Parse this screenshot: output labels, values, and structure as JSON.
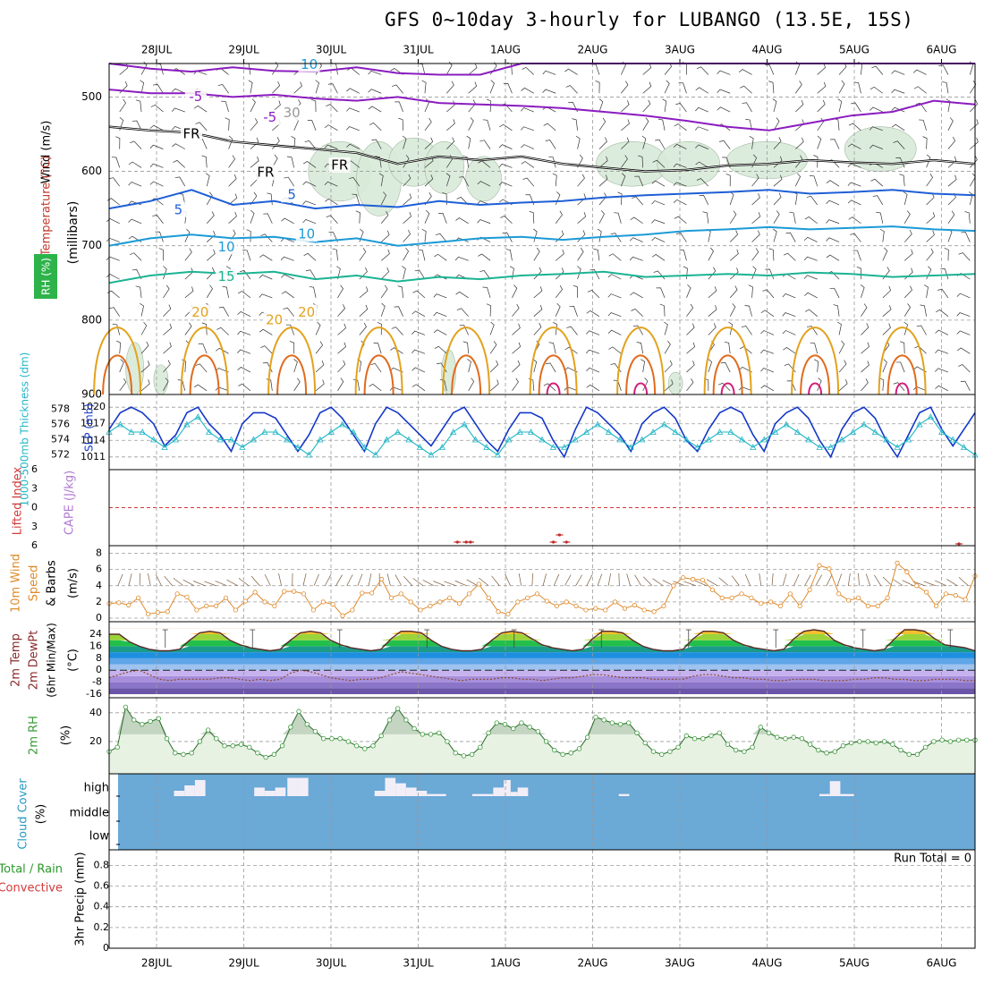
{
  "title": "GFS 0~10day 3-hourly for LUBANGO (13.5E, 15S)",
  "dates": [
    "28JUL",
    "29JUL",
    "30JUL",
    "31JUL",
    "1AUG",
    "2AUG",
    "3AUG",
    "4AUG",
    "5AUG",
    "6AUG"
  ],
  "colors": {
    "temp_m5": "#8a1cc0",
    "temp_5": "#1e5fd6",
    "temp_10": "#1b9ad6",
    "temp_15": "#1bb393",
    "temp_20": "#e3a21c",
    "temp_25": "#e06b1c",
    "temp_30": "#d61c7a",
    "freeze": "#000000",
    "rh_fill": "#d9ead9",
    "thick": "#22b6c6",
    "slp": "#1538c8",
    "wind": "#e08a2a",
    "barb": "#7a5a3a",
    "rh2m": "#3a9a3a",
    "cloud_bg": "#6ba9d6",
    "grid": "#9a9a9a"
  },
  "chart_data": [
    {
      "type": "contour",
      "panel": "upper_air",
      "ylabel_parts": [
        "Wind (m/s)",
        "Temperature (°C)",
        "RH (%)"
      ],
      "yunit": "(millibars)",
      "yticks": [
        500,
        600,
        700,
        800,
        900
      ],
      "ylim": [
        455,
        900
      ],
      "contour_labels": [
        {
          "text": "-5",
          "t": 0.45,
          "p": 500
        },
        {
          "text": "-5",
          "t": 1.3,
          "p": 528
        },
        {
          "text": "FR",
          "t": 0.4,
          "p": 550
        },
        {
          "text": "FR",
          "t": 1.25,
          "p": 602
        },
        {
          "text": "FR",
          "t": 2.1,
          "p": 592
        },
        {
          "text": "5",
          "t": 0.25,
          "p": 652
        },
        {
          "text": "5",
          "t": 1.55,
          "p": 632
        },
        {
          "text": "10",
          "t": 0.8,
          "p": 702
        },
        {
          "text": "10",
          "t": 1.72,
          "p": 685
        },
        {
          "text": "15",
          "t": 0.8,
          "p": 742
        },
        {
          "text": "20",
          "t": 0.5,
          "p": 790
        },
        {
          "text": "20",
          "t": 1.35,
          "p": 800
        },
        {
          "text": "20",
          "t": 1.72,
          "p": 790
        },
        {
          "text": "10",
          "t": 1.75,
          "p": 457
        },
        {
          "text": "30",
          "t": 1.55,
          "p": 522
        }
      ],
      "isotherms": [
        {
          "name": "-5",
          "levels": [
            455,
            462,
            466,
            460,
            465,
            466,
            460,
            468,
            470,
            470,
            455,
            455,
            455,
            455,
            455,
            455,
            455,
            455,
            455,
            455,
            455,
            455
          ]
        },
        {
          "name": "-5b",
          "levels": [
            490,
            495,
            495,
            500,
            497,
            502,
            505,
            500,
            508,
            510,
            512,
            515,
            520,
            525,
            532,
            540,
            545,
            535,
            525,
            520,
            505,
            510
          ]
        },
        {
          "name": "FR",
          "levels": [
            540,
            545,
            548,
            560,
            565,
            570,
            575,
            590,
            580,
            585,
            580,
            590,
            595,
            600,
            598,
            592,
            590,
            585,
            588,
            590,
            585,
            590
          ]
        },
        {
          "name": "5",
          "levels": [
            650,
            640,
            625,
            645,
            640,
            650,
            645,
            648,
            640,
            645,
            642,
            640,
            635,
            632,
            630,
            628,
            625,
            630,
            628,
            625,
            630,
            632
          ]
        },
        {
          "name": "10",
          "levels": [
            700,
            690,
            685,
            690,
            688,
            695,
            690,
            700,
            695,
            690,
            688,
            692,
            688,
            685,
            680,
            678,
            675,
            678,
            676,
            674,
            678,
            680
          ]
        },
        {
          "name": "15",
          "levels": [
            750,
            740,
            735,
            738,
            735,
            745,
            740,
            748,
            742,
            745,
            740,
            738,
            735,
            742,
            740,
            738,
            740,
            736,
            738,
            742,
            740,
            738
          ]
        }
      ]
    },
    {
      "type": "line",
      "panel": "thickness_slp",
      "ylabel_left": "1000-500mb Thickness (dm)",
      "ylabel_right": "SLP (mb)",
      "yticks_left": [
        572,
        574,
        576,
        578
      ],
      "yticks_right": [
        1011,
        1014,
        1017,
        1020
      ],
      "series": [
        {
          "name": "SLP",
          "axis": "right",
          "values": [
            1016,
            1019,
            1020,
            1019,
            1017,
            1013,
            1015,
            1019,
            1020,
            1017,
            1015,
            1012,
            1017,
            1019,
            1019,
            1018,
            1015,
            1012,
            1015,
            1019,
            1020,
            1018,
            1015,
            1012,
            1017,
            1020,
            1019,
            1017,
            1015,
            1013,
            1016,
            1019,
            1020,
            1017,
            1014,
            1012,
            1016,
            1019,
            1019,
            1018,
            1014,
            1011,
            1016,
            1020,
            1019,
            1017,
            1015,
            1012,
            1017,
            1019,
            1020,
            1018,
            1014,
            1012,
            1016,
            1019,
            1020,
            1019,
            1015,
            1012,
            1017,
            1019,
            1020,
            1018,
            1014,
            1011,
            1016,
            1019,
            1020,
            1018,
            1014,
            1011,
            1015,
            1019,
            1020,
            1016,
            1013,
            1016,
            1019
          ]
        },
        {
          "name": "Thickness",
          "axis": "left",
          "values": [
            575,
            576,
            575,
            575,
            574,
            573,
            574,
            576,
            577,
            575,
            574,
            574,
            573,
            574,
            575,
            575,
            574,
            573,
            572,
            574,
            575,
            576,
            575,
            573,
            572,
            574,
            575,
            574,
            573,
            572,
            573,
            575,
            576,
            574,
            573,
            572,
            574,
            575,
            575,
            574,
            573,
            573,
            574,
            575,
            576,
            575,
            574,
            573,
            574,
            575,
            576,
            575,
            574,
            573,
            574,
            575,
            575,
            574,
            573,
            574,
            575,
            576,
            575,
            574,
            573,
            573,
            574,
            575,
            576,
            575,
            574,
            573,
            574,
            576,
            577,
            575,
            574,
            573,
            572
          ]
        }
      ]
    },
    {
      "type": "line",
      "panel": "stability",
      "ylabel_left": "Lifted Index",
      "ylabel_right": "CAPE (J/kg)",
      "yticks": [
        -6,
        -3,
        0,
        3,
        6
      ],
      "ylim": [
        -6,
        6
      ],
      "series": [
        {
          "name": "CAPE",
          "points": [
            {
              "t": 3.45,
              "v": 1
            },
            {
              "t": 3.55,
              "v": 1
            },
            {
              "t": 3.6,
              "v": 1
            },
            {
              "t": 4.55,
              "v": 1
            },
            {
              "t": 4.62,
              "v": 3
            },
            {
              "t": 4.7,
              "v": 1
            },
            {
              "t": 9.2,
              "v": 0.5
            }
          ]
        }
      ]
    },
    {
      "type": "line",
      "panel": "wind10m",
      "ylabel": "10m Wind Speed & Barbs (m/s)",
      "yticks": [
        0,
        2,
        4,
        6,
        8
      ],
      "ylim": [
        0,
        8.5
      ],
      "series": [
        {
          "name": "10m Wind Speed",
          "values": [
            1.8,
            1.9,
            1.6,
            2.5,
            0.5,
            0.7,
            0.8,
            3.0,
            2.6,
            1.0,
            1.5,
            1.5,
            2.5,
            1.0,
            2.1,
            3.2,
            2.0,
            1.5,
            3.3,
            3.3,
            3.0,
            1.0,
            2.0,
            1.7,
            0.3,
            1.0,
            3.1,
            3.1,
            4.8,
            2.5,
            3.0,
            2.0,
            1.0,
            1.5,
            2.0,
            2.5,
            1.8,
            3.0,
            4.2,
            2.5,
            0.8,
            0.5,
            2.0,
            2.5,
            3.0,
            2.1,
            1.5,
            2.0,
            1.5,
            1.0,
            1.2,
            1.0,
            2.0,
            1.2,
            1.6,
            1.0,
            0.8,
            1.5,
            4.0,
            5.0,
            4.8,
            4.7,
            3.5,
            2.5,
            2.5,
            3.0,
            2.5,
            1.8,
            2.0,
            1.5,
            3.0,
            1.5,
            3.5,
            6.5,
            6.1,
            3.0,
            2.2,
            2.5,
            1.5,
            1.5,
            2.5,
            6.8,
            5.7,
            4.0,
            3.2,
            1.5,
            3.0,
            2.8,
            2.3,
            5.2
          ]
        }
      ]
    },
    {
      "type": "area",
      "panel": "temperature2m",
      "ylabel": "2m Temp 2m DewPt (6hr Min/Max) (°C)",
      "yticks": [
        -16,
        -8,
        0,
        8,
        16,
        24
      ],
      "ylim": [
        -16,
        30
      ],
      "series": [
        {
          "name": "2m Temp",
          "values": [
            24,
            24,
            19,
            16,
            14,
            13,
            13,
            14,
            20,
            25,
            26,
            25,
            20,
            17,
            15,
            14,
            13,
            14,
            20,
            25,
            26,
            25,
            20,
            17,
            15,
            14,
            13,
            14,
            21,
            26,
            26,
            25,
            20,
            16,
            14,
            13,
            13,
            14,
            20,
            25,
            26,
            25,
            21,
            17,
            15,
            14,
            13,
            14,
            21,
            26,
            26,
            25,
            20,
            16,
            14,
            13,
            13,
            14,
            21,
            26,
            26,
            25,
            20,
            17,
            15,
            14,
            13,
            14,
            21,
            26,
            27,
            26,
            20,
            17,
            15,
            14,
            13,
            14,
            21,
            27,
            27,
            26,
            21,
            17,
            16,
            15,
            13
          ]
        },
        {
          "name": "2m DewPt",
          "values": [
            -5,
            -3,
            -1,
            0,
            -3,
            -6,
            -7,
            -6,
            -6,
            -6,
            -6,
            -5,
            -5,
            -6,
            -7,
            -6,
            -7,
            -6,
            -2,
            0,
            -1,
            -3,
            -5,
            -6,
            -7,
            -6,
            -6,
            -5,
            -3,
            -1,
            -2,
            -3,
            -4,
            -5,
            -6,
            -7,
            -6,
            -6,
            -6,
            -5,
            -5,
            -6,
            -6,
            -7,
            -6,
            -5,
            -5,
            -4,
            -3,
            -3,
            -4,
            -5,
            -5,
            -5,
            -6,
            -6,
            -6,
            -6,
            -4,
            -3,
            -3,
            -4,
            -5,
            -5,
            -6,
            -6,
            -7,
            -7,
            -6,
            -6,
            -6,
            -7,
            -7,
            -7,
            -6,
            -6,
            -5,
            -5,
            -6,
            -6,
            -7,
            -7,
            -6,
            -6,
            -6,
            -7,
            -7
          ]
        }
      ]
    },
    {
      "type": "area",
      "panel": "rh2m",
      "ylabel": "2m RH (%)",
      "yticks": [
        20,
        40
      ],
      "ylim": [
        0,
        48
      ],
      "series": [
        {
          "name": "2m RH",
          "values": [
            13,
            16,
            44,
            35,
            32,
            34,
            36,
            22,
            12,
            11,
            12,
            20,
            28,
            22,
            17,
            17,
            18,
            16,
            12,
            9,
            11,
            17,
            30,
            41,
            32,
            27,
            22,
            22,
            22,
            20,
            17,
            15,
            17,
            24,
            35,
            43,
            35,
            29,
            25,
            25,
            26,
            20,
            12,
            10,
            11,
            16,
            26,
            33,
            32,
            29,
            33,
            30,
            27,
            20,
            14,
            11,
            12,
            15,
            23,
            37,
            35,
            33,
            32,
            33,
            26,
            19,
            13,
            11,
            13,
            16,
            24,
            22,
            22,
            24,
            26,
            18,
            14,
            13,
            16,
            30,
            26,
            23,
            22,
            23,
            22,
            18,
            14,
            12,
            13,
            17,
            19,
            20,
            20,
            19,
            20,
            18,
            14,
            11,
            11,
            16,
            20,
            21,
            20,
            21,
            21,
            21
          ]
        }
      ]
    },
    {
      "type": "bar",
      "panel": "cloud_cover",
      "ylabel": "Cloud Cover (%)",
      "yticks": [
        "high",
        "middle",
        "low"
      ],
      "series": [
        {
          "name": "high",
          "segments": [
            {
              "t0": 0.2,
              "t1": 0.32,
              "v": 25
            },
            {
              "t0": 0.32,
              "t1": 0.44,
              "v": 50
            },
            {
              "t0": 0.44,
              "t1": 0.56,
              "v": 75
            },
            {
              "t0": 1.12,
              "t1": 1.24,
              "v": 40
            },
            {
              "t0": 1.24,
              "t1": 1.36,
              "v": 25
            },
            {
              "t0": 1.36,
              "t1": 1.48,
              "v": 40
            },
            {
              "t0": 1.5,
              "t1": 1.62,
              "v": 85
            },
            {
              "t0": 1.62,
              "t1": 1.74,
              "v": 85
            },
            {
              "t0": 2.5,
              "t1": 2.62,
              "v": 25
            },
            {
              "t0": 2.62,
              "t1": 2.74,
              "v": 85
            },
            {
              "t0": 2.74,
              "t1": 2.86,
              "v": 60
            },
            {
              "t0": 2.86,
              "t1": 2.98,
              "v": 40
            },
            {
              "t0": 2.98,
              "t1": 3.1,
              "v": 25
            },
            {
              "t0": 3.1,
              "t1": 3.32,
              "v": 10
            },
            {
              "t0": 3.62,
              "t1": 3.86,
              "v": 10
            },
            {
              "t0": 3.86,
              "t1": 3.98,
              "v": 40
            },
            {
              "t0": 3.98,
              "t1": 4.06,
              "v": 75
            },
            {
              "t0": 4.06,
              "t1": 4.14,
              "v": 20
            },
            {
              "t0": 4.14,
              "t1": 4.26,
              "v": 40
            },
            {
              "t0": 5.3,
              "t1": 5.42,
              "v": 10
            },
            {
              "t0": 7.6,
              "t1": 7.72,
              "v": 10
            },
            {
              "t0": 7.72,
              "t1": 7.84,
              "v": 70
            },
            {
              "t0": 7.84,
              "t1": 8.0,
              "v": 10
            }
          ]
        }
      ]
    },
    {
      "type": "line",
      "panel": "precip",
      "ylabel": "3hr Precip (mm)",
      "ylabel_extra": [
        "Total / Rain",
        "Convective"
      ],
      "yticks": [
        0,
        0.2,
        0.4,
        0.6,
        0.8
      ],
      "ylim": [
        0,
        0.95
      ],
      "run_total": "Run Total = 0",
      "series": [
        {
          "name": "Total / Rain",
          "values": []
        },
        {
          "name": "Convective",
          "values": []
        }
      ]
    }
  ]
}
